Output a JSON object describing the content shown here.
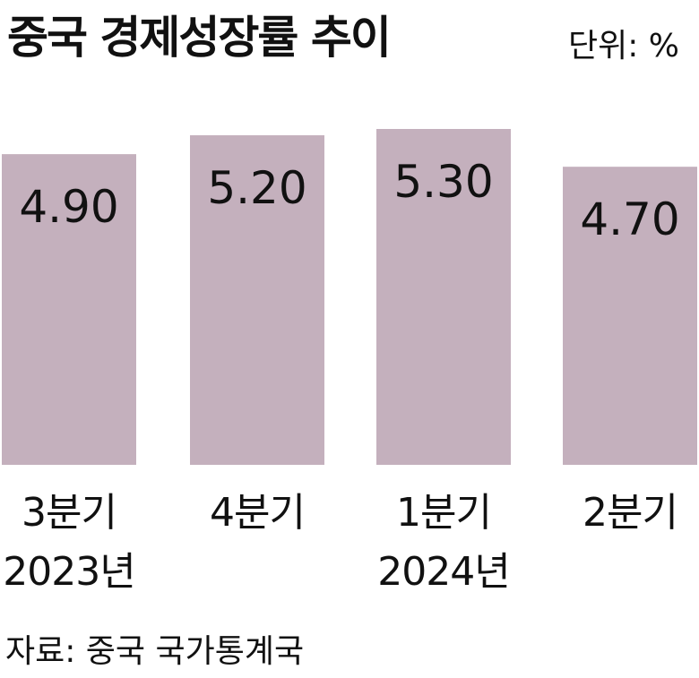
{
  "header": {
    "title": "중국 경제성장률 추이",
    "unit": "단위: %"
  },
  "footer": {
    "source": "자료: 중국 국가통계국"
  },
  "colors": {
    "bar": "#c4b0bd",
    "text": "#111111"
  },
  "chart_data": {
    "type": "bar",
    "title": "중국 경제성장률 추이",
    "ylabel": "",
    "xlabel": "",
    "categories": [
      {
        "quarter": "3분기",
        "year": "2023년"
      },
      {
        "quarter": "4분기",
        "year": ""
      },
      {
        "quarter": "1분기",
        "year": "2024년"
      },
      {
        "quarter": "2분기",
        "year": ""
      }
    ],
    "values": [
      4.9,
      5.2,
      5.3,
      4.7
    ],
    "value_labels": [
      "4.90",
      "5.20",
      "5.30",
      "4.70"
    ],
    "grid": false,
    "legend": "none"
  }
}
